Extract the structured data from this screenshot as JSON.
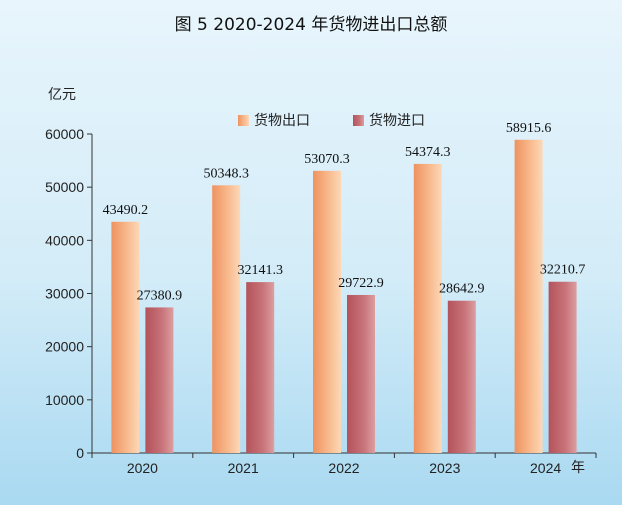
{
  "chart_data": {
    "type": "bar",
    "title": "图 5  2020-2024 年货物进出口总额",
    "ylabel": "亿元",
    "xlabel": "年",
    "categories": [
      "2020",
      "2021",
      "2022",
      "2023",
      "2024"
    ],
    "series": [
      {
        "name": "货物出口",
        "values": [
          43490.2,
          50348.3,
          53070.3,
          54374.3,
          58915.6
        ],
        "value_labels": [
          "43490.2",
          "50348.3",
          "53070.3",
          "54374.3",
          "58915.6"
        ],
        "color": "#f2a472"
      },
      {
        "name": "货物进口",
        "values": [
          27380.9,
          32141.3,
          29722.9,
          28642.9,
          32210.7
        ],
        "value_labels": [
          "27380.9",
          "32141.3",
          "29722.9",
          "28642.9",
          "32210.7"
        ],
        "color": "#c0646a"
      }
    ],
    "ylim": [
      0,
      60000
    ],
    "yticks": [
      0,
      10000,
      20000,
      30000,
      40000,
      50000,
      60000
    ],
    "legend_position": "top-center",
    "grid": false
  }
}
